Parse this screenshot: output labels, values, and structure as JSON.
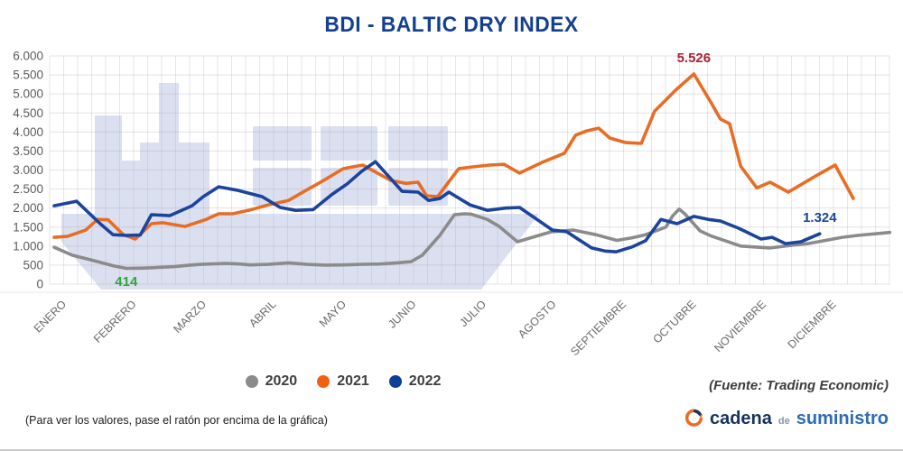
{
  "title": "BDI - BALTIC DRY INDEX",
  "chart_data": {
    "type": "line",
    "title": "BDI - BALTIC DRY INDEX",
    "x_axis": {
      "categories": [
        "ENERO",
        "FEBRERO",
        "MARZO",
        "ABRIL",
        "MAYO",
        "JUNIO",
        "JULIO",
        "AGOSTO",
        "SEPTIEMBRE",
        "OCTUBRE",
        "NOVIEMBRE",
        "DICIEMBRE"
      ],
      "unit": "month"
    },
    "y_axis": {
      "min": 0,
      "max": 6000,
      "step": 500,
      "tick_labels": [
        "6.000",
        "5.500",
        "5.000",
        "4.500",
        "4.000",
        "3.500",
        "3.000",
        "2.500",
        "2.000",
        "1.500",
        "1.000",
        "500",
        "0"
      ]
    },
    "grid": true,
    "legend_position": "bottom",
    "series": [
      {
        "name": "2020",
        "color": "#8b8b8b",
        "points": [
          [
            0,
            970
          ],
          [
            0.26,
            760
          ],
          [
            0.52,
            640
          ],
          [
            0.86,
            475
          ],
          [
            1.03,
            414
          ],
          [
            1.23,
            420
          ],
          [
            1.38,
            430
          ],
          [
            1.55,
            445
          ],
          [
            1.72,
            460
          ],
          [
            1.94,
            500
          ],
          [
            2.1,
            520
          ],
          [
            2.45,
            545
          ],
          [
            2.65,
            530
          ],
          [
            2.8,
            505
          ],
          [
            3.06,
            520
          ],
          [
            3.35,
            560
          ],
          [
            3.61,
            520
          ],
          [
            3.87,
            500
          ],
          [
            4.13,
            505
          ],
          [
            4.39,
            520
          ],
          [
            4.65,
            530
          ],
          [
            4.9,
            560
          ],
          [
            5.1,
            590
          ],
          [
            5.26,
            760
          ],
          [
            5.51,
            1280
          ],
          [
            5.72,
            1825
          ],
          [
            5.87,
            1850
          ],
          [
            5.96,
            1840
          ],
          [
            6.19,
            1700
          ],
          [
            6.36,
            1515
          ],
          [
            6.62,
            1115
          ],
          [
            7.1,
            1375
          ],
          [
            7.42,
            1420
          ],
          [
            7.74,
            1300
          ],
          [
            8.04,
            1150
          ],
          [
            8.26,
            1220
          ],
          [
            8.45,
            1300
          ],
          [
            8.74,
            1500
          ],
          [
            8.84,
            1800
          ],
          [
            8.93,
            1970
          ],
          [
            9.01,
            1850
          ],
          [
            9.23,
            1400
          ],
          [
            9.38,
            1270
          ],
          [
            9.59,
            1140
          ],
          [
            9.81,
            1000
          ],
          [
            10.23,
            950
          ],
          [
            10.54,
            1020
          ],
          [
            10.77,
            1065
          ],
          [
            11.26,
            1230
          ],
          [
            11.48,
            1280
          ],
          [
            11.94,
            1360
          ]
        ]
      },
      {
        "name": "2021",
        "color": "#e76d24",
        "points": [
          [
            0,
            1230
          ],
          [
            0.19,
            1255
          ],
          [
            0.45,
            1420
          ],
          [
            0.62,
            1700
          ],
          [
            0.77,
            1690
          ],
          [
            0.99,
            1300
          ],
          [
            1.16,
            1185
          ],
          [
            1.39,
            1590
          ],
          [
            1.55,
            1615
          ],
          [
            1.87,
            1515
          ],
          [
            2.17,
            1700
          ],
          [
            2.35,
            1850
          ],
          [
            2.55,
            1850
          ],
          [
            2.8,
            1950
          ],
          [
            3.06,
            2085
          ],
          [
            3.35,
            2200
          ],
          [
            3.55,
            2415
          ],
          [
            3.85,
            2725
          ],
          [
            4.13,
            3035
          ],
          [
            4.41,
            3130
          ],
          [
            4.81,
            2725
          ],
          [
            5.03,
            2650
          ],
          [
            5.2,
            2680
          ],
          [
            5.32,
            2325
          ],
          [
            5.48,
            2300
          ],
          [
            5.78,
            3035
          ],
          [
            5.97,
            3080
          ],
          [
            6.22,
            3130
          ],
          [
            6.43,
            3150
          ],
          [
            6.65,
            2920
          ],
          [
            6.97,
            3200
          ],
          [
            7.29,
            3440
          ],
          [
            7.45,
            3915
          ],
          [
            7.61,
            4030
          ],
          [
            7.78,
            4100
          ],
          [
            7.94,
            3840
          ],
          [
            8.17,
            3720
          ],
          [
            8.39,
            3700
          ],
          [
            8.58,
            4550
          ],
          [
            8.88,
            5100
          ],
          [
            9.14,
            5526
          ],
          [
            9.38,
            4790
          ],
          [
            9.52,
            4340
          ],
          [
            9.65,
            4220
          ],
          [
            9.81,
            3100
          ],
          [
            10.04,
            2530
          ],
          [
            10.23,
            2680
          ],
          [
            10.49,
            2420
          ],
          [
            10.88,
            2840
          ],
          [
            11.16,
            3130
          ],
          [
            11.42,
            2250
          ]
        ]
      },
      {
        "name": "2022",
        "color": "#1b449c",
        "points": [
          [
            0,
            2060
          ],
          [
            0.32,
            2180
          ],
          [
            0.65,
            1600
          ],
          [
            0.84,
            1300
          ],
          [
            1.03,
            1280
          ],
          [
            1.23,
            1290
          ],
          [
            1.39,
            1825
          ],
          [
            1.65,
            1800
          ],
          [
            1.97,
            2060
          ],
          [
            2.13,
            2300
          ],
          [
            2.35,
            2560
          ],
          [
            2.61,
            2470
          ],
          [
            2.97,
            2300
          ],
          [
            3.23,
            2015
          ],
          [
            3.45,
            1940
          ],
          [
            3.7,
            1960
          ],
          [
            3.97,
            2360
          ],
          [
            4.19,
            2640
          ],
          [
            4.39,
            2960
          ],
          [
            4.59,
            3220
          ],
          [
            4.81,
            2770
          ],
          [
            4.97,
            2440
          ],
          [
            5.2,
            2420
          ],
          [
            5.35,
            2200
          ],
          [
            5.51,
            2250
          ],
          [
            5.64,
            2420
          ],
          [
            5.94,
            2085
          ],
          [
            6.19,
            1940
          ],
          [
            6.45,
            2000
          ],
          [
            6.65,
            2015
          ],
          [
            7.12,
            1420
          ],
          [
            7.32,
            1380
          ],
          [
            7.68,
            950
          ],
          [
            7.87,
            870
          ],
          [
            8.03,
            850
          ],
          [
            8.26,
            980
          ],
          [
            8.45,
            1140
          ],
          [
            8.67,
            1700
          ],
          [
            8.9,
            1590
          ],
          [
            9.14,
            1780
          ],
          [
            9.35,
            1700
          ],
          [
            9.52,
            1660
          ],
          [
            9.78,
            1470
          ],
          [
            10.1,
            1185
          ],
          [
            10.26,
            1230
          ],
          [
            10.45,
            1065
          ],
          [
            10.67,
            1115
          ],
          [
            10.94,
            1324
          ]
        ]
      }
    ],
    "annotations": [
      {
        "label": "414",
        "series": "2020",
        "value": 414,
        "x_month": 1.03,
        "color": "#2fa637",
        "placement": "below"
      },
      {
        "label": "5.526",
        "series": "2021",
        "value": 5526,
        "x_month": 9.14,
        "color": "#a92237",
        "placement": "above"
      },
      {
        "label": "1.324",
        "series": "2022",
        "value": 1324,
        "x_month": 10.94,
        "color": "#1b449c",
        "placement": "above"
      }
    ]
  },
  "legend": {
    "items": [
      {
        "label": "2020",
        "color": "#8b8b8b"
      },
      {
        "label": "2021",
        "color": "#ed6312"
      },
      {
        "label": "2022",
        "color": "#0f3e96"
      }
    ]
  },
  "source_note": "(Fuente: Trading Economic)",
  "footer_note": "(Para ver los valores, pase el ratón por encima de la gráfica)",
  "logo": {
    "part1": "cadena",
    "part2": "de",
    "part3": "suministro"
  },
  "colors": {
    "title": "#14418f",
    "watermark": "#dbe0f0",
    "grid": "#e9e2e9"
  }
}
